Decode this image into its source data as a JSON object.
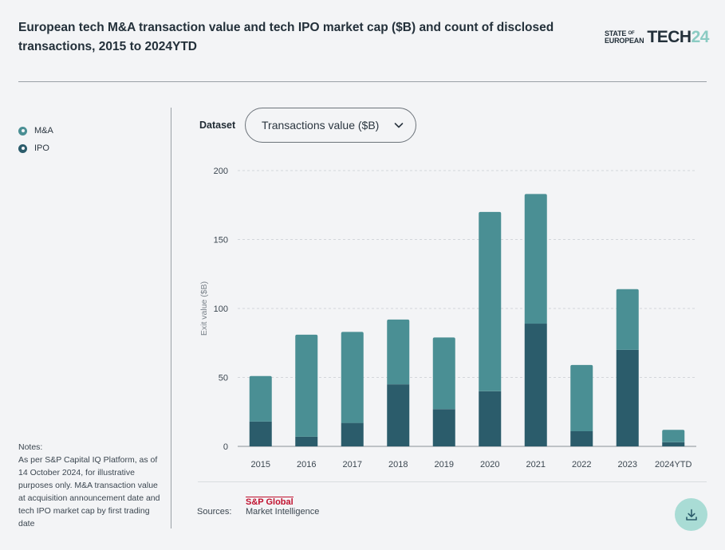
{
  "header": {
    "title": "European tech M&A transaction value and tech IPO market cap ($B) and count of disclosed transactions, 2015 to 2024YTD",
    "logo_line1": "STATE",
    "logo_of": "OF",
    "logo_line2": "EUROPEAN",
    "logo_tech": "TECH",
    "logo_year": "24"
  },
  "legend": [
    {
      "label": "M&A",
      "color": "#4a8f94"
    },
    {
      "label": "IPO",
      "color": "#2b5c6b"
    }
  ],
  "notes": {
    "text": "Notes:\nAs per S&P Capital IQ Platform, as of 14 October 2024, for illustrative purposes only. M&A transaction value at acquisition announcement date and tech IPO market cap by first trading date"
  },
  "controls": {
    "dataset_label": "Dataset",
    "dataset_value": "Transactions value ($B)",
    "dataset_icon": "chevron-down-icon",
    "download_icon": "download-icon"
  },
  "sources": {
    "label": "Sources:",
    "provider_line1": "S&P Global",
    "provider_line2": "Market Intelligence"
  },
  "chart_data": {
    "type": "bar",
    "stacked": true,
    "categories": [
      "2015",
      "2016",
      "2017",
      "2018",
      "2019",
      "2020",
      "2021",
      "2022",
      "2023",
      "2024YTD"
    ],
    "series": [
      {
        "name": "IPO",
        "color": "#2b5c6b",
        "values": [
          18,
          7,
          17,
          45,
          27,
          40,
          89,
          11,
          70,
          3
        ]
      },
      {
        "name": "M&A",
        "color": "#4a8f94",
        "values": [
          33,
          74,
          66,
          47,
          52,
          130,
          94,
          48,
          44,
          9
        ]
      }
    ],
    "xlabel": "",
    "ylabel": "Exit value ($B)",
    "ylim": [
      0,
      200
    ],
    "yticks": [
      0,
      50,
      100,
      150,
      200
    ],
    "grid": true
  }
}
